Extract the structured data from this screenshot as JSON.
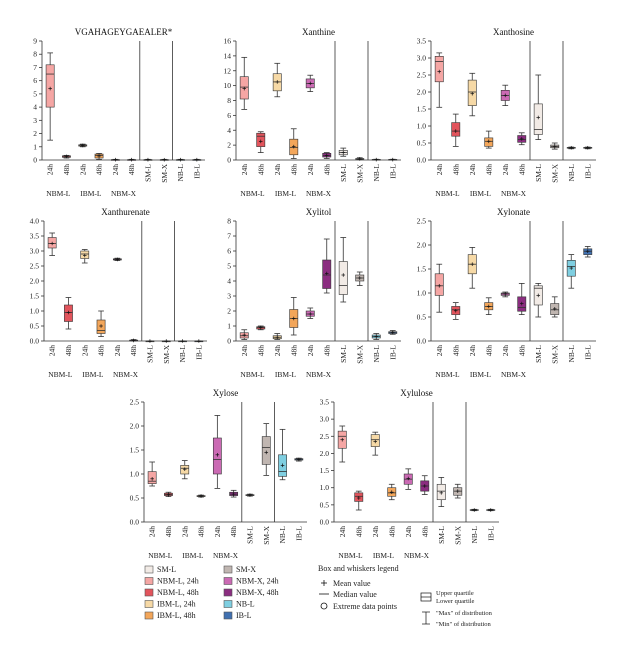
{
  "colors": {
    "SM-L": "#f2ebe6",
    "NBM-L, 24h": "#f5a6a4",
    "NBM-L, 48h": "#e2545c",
    "IBM-L, 24h": "#f6d9a6",
    "IBM-L, 48h": "#f3a65a",
    "SM-X": "#c0b6b1",
    "NBM-X, 24h": "#cb6ab4",
    "NBM-X, 48h": "#8b2d80",
    "NB-L": "#7fcfe1",
    "IB-L": "#4070b0"
  },
  "legend": {
    "items": [
      "SM-L",
      "NBM-L, 24h",
      "NBM-L, 48h",
      "IBM-L, 24h",
      "IBM-L, 48h",
      "SM-X",
      "NBM-X, 24h",
      "NBM-X, 48h",
      "NB-L",
      "IB-L"
    ],
    "title": "Box and whiskers legend",
    "mean": "Mean value",
    "median": "Median value",
    "extreme": "Extreme data points",
    "upper_q": "Upper quartile",
    "lower_q": "Lower quartile",
    "max": "\"Max\" of distribution",
    "min": "\"Min\" of distribution"
  },
  "chart_data": [
    {
      "type": "box",
      "title": "VGAHAGEYGAEALER*",
      "ylim": [
        0,
        9
      ],
      "yticks": [
        0,
        1,
        2,
        3,
        4,
        5,
        6,
        7,
        8,
        9
      ],
      "decimals": 0,
      "boxes": [
        {
          "group": "NBM-L, 24h",
          "min": 1.5,
          "q1": 4.0,
          "median": 6.5,
          "q3": 7.2,
          "max": 8.1,
          "mean": 5.4
        },
        {
          "group": "NBM-L, 48h",
          "min": 0.15,
          "q1": 0.2,
          "median": 0.28,
          "q3": 0.32,
          "max": 0.35,
          "mean": 0.27
        },
        {
          "group": "IBM-L, 24h",
          "min": 1.0,
          "q1": 1.05,
          "median": 1.1,
          "q3": 1.15,
          "max": 1.2,
          "mean": 1.1
        },
        {
          "group": "IBM-L, 48h",
          "min": 0.05,
          "q1": 0.15,
          "median": 0.35,
          "q3": 0.45,
          "max": 0.5,
          "mean": 0.3
        },
        {
          "group": "NBM-X, 24h",
          "min": 0,
          "q1": 0.01,
          "median": 0.02,
          "q3": 0.03,
          "max": 0.05,
          "mean": 0.02
        },
        {
          "group": "NBM-X, 48h",
          "min": 0,
          "q1": 0.01,
          "median": 0.02,
          "q3": 0.03,
          "max": 0.05,
          "mean": 0.02
        },
        {
          "group": "SM-L",
          "min": 0,
          "q1": 0.01,
          "median": 0.02,
          "q3": 0.03,
          "max": 0.05,
          "mean": 0.02
        },
        {
          "group": "SM-X",
          "min": 0,
          "q1": 0.01,
          "median": 0.02,
          "q3": 0.03,
          "max": 0.05,
          "mean": 0.02
        },
        {
          "group": "NB-L",
          "min": 0,
          "q1": 0.01,
          "median": 0.02,
          "q3": 0.03,
          "max": 0.05,
          "mean": 0.02
        },
        {
          "group": "IB-L",
          "min": 0,
          "q1": 0.01,
          "median": 0.02,
          "q3": 0.03,
          "max": 0.05,
          "mean": 0.02
        }
      ]
    },
    {
      "type": "box",
      "title": "Xanthine",
      "ylim": [
        0,
        16
      ],
      "yticks": [
        0,
        2,
        4,
        6,
        8,
        10,
        12,
        14,
        16
      ],
      "decimals": 0,
      "boxes": [
        {
          "group": "NBM-L, 24h",
          "min": 6.8,
          "q1": 8.2,
          "median": 9.8,
          "q3": 11.2,
          "max": 13.8,
          "mean": 9.6
        },
        {
          "group": "NBM-L, 48h",
          "min": 1.0,
          "q1": 1.8,
          "median": 3.2,
          "q3": 3.6,
          "max": 3.8,
          "mean": 2.5
        },
        {
          "group": "IBM-L, 24h",
          "min": 8.5,
          "q1": 9.3,
          "median": 10.5,
          "q3": 11.6,
          "max": 13.0,
          "mean": 10.5
        },
        {
          "group": "IBM-L, 48h",
          "min": 0.2,
          "q1": 0.7,
          "median": 1.7,
          "q3": 2.8,
          "max": 4.2,
          "mean": 1.8
        },
        {
          "group": "NBM-X, 24h",
          "min": 9.2,
          "q1": 9.7,
          "median": 10.3,
          "q3": 10.9,
          "max": 11.4,
          "mean": 10.3
        },
        {
          "group": "NBM-X, 48h",
          "min": 0.2,
          "q1": 0.4,
          "median": 0.6,
          "q3": 0.9,
          "max": 1.0,
          "mean": 0.6
        },
        {
          "group": "SM-L",
          "min": 0.5,
          "q1": 0.7,
          "median": 1.0,
          "q3": 1.3,
          "max": 1.6,
          "mean": 1.0
        },
        {
          "group": "SM-X",
          "min": 0.05,
          "q1": 0.1,
          "median": 0.15,
          "q3": 0.2,
          "max": 0.3,
          "mean": 0.15
        },
        {
          "group": "NB-L",
          "min": 0,
          "q1": 0.02,
          "median": 0.05,
          "q3": 0.08,
          "max": 0.1,
          "mean": 0.05
        },
        {
          "group": "IB-L",
          "min": 0,
          "q1": 0.02,
          "median": 0.05,
          "q3": 0.08,
          "max": 0.1,
          "mean": 0.05
        }
      ]
    },
    {
      "type": "box",
      "title": "Xanthosine",
      "ylim": [
        0,
        3.5
      ],
      "yticks": [
        0,
        0.5,
        1,
        1.5,
        2,
        2.5,
        3,
        3.5
      ],
      "decimals": 1,
      "boxes": [
        {
          "group": "NBM-L, 24h",
          "min": 1.55,
          "q1": 2.3,
          "median": 2.9,
          "q3": 3.05,
          "max": 3.15,
          "mean": 2.6
        },
        {
          "group": "NBM-L, 48h",
          "min": 0.4,
          "q1": 0.7,
          "median": 0.85,
          "q3": 1.1,
          "max": 1.35,
          "mean": 0.85
        },
        {
          "group": "IBM-L, 24h",
          "min": 1.3,
          "q1": 1.6,
          "median": 2.0,
          "q3": 2.35,
          "max": 2.55,
          "mean": 1.95
        },
        {
          "group": "IBM-L, 48h",
          "min": 0.35,
          "q1": 0.4,
          "median": 0.55,
          "q3": 0.65,
          "max": 0.85,
          "mean": 0.55
        },
        {
          "group": "NBM-X, 24h",
          "min": 1.6,
          "q1": 1.75,
          "median": 1.9,
          "q3": 2.05,
          "max": 2.2,
          "mean": 1.9
        },
        {
          "group": "NBM-X, 48h",
          "min": 0.45,
          "q1": 0.52,
          "median": 0.6,
          "q3": 0.72,
          "max": 0.8,
          "mean": 0.62
        },
        {
          "group": "SM-L",
          "min": 0.6,
          "q1": 0.75,
          "median": 0.9,
          "q3": 1.65,
          "max": 2.5,
          "mean": 1.25
        },
        {
          "group": "SM-X",
          "min": 0.32,
          "q1": 0.36,
          "median": 0.4,
          "q3": 0.44,
          "max": 0.5,
          "mean": 0.4
        },
        {
          "group": "NB-L",
          "min": 0.33,
          "q1": 0.35,
          "median": 0.36,
          "q3": 0.37,
          "max": 0.38,
          "mean": 0.36
        },
        {
          "group": "IB-L",
          "min": 0.33,
          "q1": 0.35,
          "median": 0.36,
          "q3": 0.37,
          "max": 0.38,
          "mean": 0.36
        }
      ]
    },
    {
      "type": "box",
      "title": "Xanthurenate",
      "ylim": [
        0,
        4
      ],
      "yticks": [
        0,
        0.5,
        1,
        1.5,
        2,
        2.5,
        3,
        3.5,
        4
      ],
      "decimals": 1,
      "boxes": [
        {
          "group": "NBM-L, 24h",
          "min": 2.85,
          "q1": 3.1,
          "median": 3.25,
          "q3": 3.45,
          "max": 3.6,
          "mean": 3.25
        },
        {
          "group": "NBM-L, 48h",
          "min": 0.4,
          "q1": 0.65,
          "median": 0.95,
          "q3": 1.2,
          "max": 1.45,
          "mean": 0.95
        },
        {
          "group": "IBM-L, 24h",
          "min": 2.6,
          "q1": 2.75,
          "median": 2.9,
          "q3": 3.0,
          "max": 3.05,
          "mean": 2.85
        },
        {
          "group": "IBM-L, 48h",
          "min": 0.15,
          "q1": 0.25,
          "median": 0.35,
          "q3": 0.7,
          "max": 1.0,
          "mean": 0.5
        },
        {
          "group": "NBM-X, 24h",
          "min": 2.68,
          "q1": 2.7,
          "median": 2.72,
          "q3": 2.74,
          "max": 2.76,
          "mean": 2.72
        },
        {
          "group": "NBM-X, 48h",
          "min": 0,
          "q1": 0.01,
          "median": 0.02,
          "q3": 0.03,
          "max": 0.05,
          "mean": 0.02
        },
        {
          "group": "SM-L",
          "min": 0,
          "q1": 0,
          "median": 0,
          "q3": 0,
          "max": 0,
          "mean": 0
        },
        {
          "group": "SM-X",
          "min": 0,
          "q1": 0,
          "median": 0,
          "q3": 0,
          "max": 0,
          "mean": 0
        },
        {
          "group": "NB-L",
          "min": 0,
          "q1": 0,
          "median": 0,
          "q3": 0,
          "max": 0,
          "mean": 0
        },
        {
          "group": "IB-L",
          "min": 0,
          "q1": 0,
          "median": 0,
          "q3": 0,
          "max": 0,
          "mean": 0
        }
      ]
    },
    {
      "type": "box",
      "title": "Xylitol",
      "ylim": [
        0,
        8
      ],
      "yticks": [
        0,
        1,
        2,
        3,
        4,
        5,
        6,
        7,
        8
      ],
      "decimals": 0,
      "boxes": [
        {
          "group": "NBM-L, 24h",
          "min": 0.1,
          "q1": 0.2,
          "median": 0.35,
          "q3": 0.55,
          "max": 0.75,
          "mean": 0.4
        },
        {
          "group": "NBM-L, 48h",
          "min": 0.75,
          "q1": 0.8,
          "median": 0.9,
          "q3": 0.95,
          "max": 1.0,
          "mean": 0.9
        },
        {
          "group": "IBM-L, 24h",
          "min": 0.1,
          "q1": 0.15,
          "median": 0.25,
          "q3": 0.35,
          "max": 0.5,
          "mean": 0.25
        },
        {
          "group": "IBM-L, 48h",
          "min": 0.4,
          "q1": 0.9,
          "median": 1.5,
          "q3": 2.1,
          "max": 2.9,
          "mean": 1.5
        },
        {
          "group": "NBM-X, 24h",
          "min": 1.5,
          "q1": 1.65,
          "median": 1.8,
          "q3": 2.0,
          "max": 2.2,
          "mean": 1.8
        },
        {
          "group": "NBM-X, 48h",
          "min": 3.2,
          "q1": 3.5,
          "median": 4.4,
          "q3": 5.4,
          "max": 6.8,
          "mean": 4.5
        },
        {
          "group": "SM-L",
          "min": 2.6,
          "q1": 3.1,
          "median": 3.7,
          "q3": 5.3,
          "max": 6.9,
          "mean": 4.4
        },
        {
          "group": "SM-X",
          "min": 3.7,
          "q1": 4.0,
          "median": 4.2,
          "q3": 4.4,
          "max": 4.6,
          "mean": 4.2
        },
        {
          "group": "NB-L",
          "min": 0.1,
          "q1": 0.2,
          "median": 0.3,
          "q3": 0.4,
          "max": 0.5,
          "mean": 0.3
        },
        {
          "group": "IB-L",
          "min": 0.45,
          "q1": 0.5,
          "median": 0.55,
          "q3": 0.62,
          "max": 0.7,
          "mean": 0.56
        }
      ]
    },
    {
      "type": "box",
      "title": "Xylonate",
      "ylim": [
        0,
        2.5
      ],
      "yticks": [
        0,
        0.5,
        1,
        1.5,
        2,
        2.5
      ],
      "decimals": 1,
      "boxes": [
        {
          "group": "NBM-L, 24h",
          "min": 0.6,
          "q1": 0.95,
          "median": 1.15,
          "q3": 1.4,
          "max": 1.6,
          "mean": 1.15
        },
        {
          "group": "NBM-L, 48h",
          "min": 0.45,
          "q1": 0.55,
          "median": 0.65,
          "q3": 0.72,
          "max": 0.8,
          "mean": 0.63
        },
        {
          "group": "IBM-L, 24h",
          "min": 1.1,
          "q1": 1.4,
          "median": 1.6,
          "q3": 1.8,
          "max": 1.95,
          "mean": 1.6
        },
        {
          "group": "IBM-L, 48h",
          "min": 0.55,
          "q1": 0.65,
          "median": 0.72,
          "q3": 0.8,
          "max": 0.9,
          "mean": 0.72
        },
        {
          "group": "NBM-X, 24h",
          "min": 0.92,
          "q1": 0.95,
          "median": 0.98,
          "q3": 1.0,
          "max": 1.02,
          "mean": 0.98
        },
        {
          "group": "NBM-X, 48h",
          "min": 0.55,
          "q1": 0.62,
          "median": 0.7,
          "q3": 0.92,
          "max": 1.2,
          "mean": 0.78
        },
        {
          "group": "SM-L",
          "min": 0.5,
          "q1": 0.75,
          "median": 1.1,
          "q3": 1.15,
          "max": 1.2,
          "mean": 0.95
        },
        {
          "group": "SM-X",
          "min": 0.5,
          "q1": 0.55,
          "median": 0.65,
          "q3": 0.78,
          "max": 0.92,
          "mean": 0.67
        },
        {
          "group": "NB-L",
          "min": 1.1,
          "q1": 1.35,
          "median": 1.55,
          "q3": 1.68,
          "max": 1.8,
          "mean": 1.52
        },
        {
          "group": "IB-L",
          "min": 1.75,
          "q1": 1.8,
          "median": 1.87,
          "q3": 1.92,
          "max": 1.97,
          "mean": 1.87
        }
      ]
    },
    {
      "type": "box",
      "title": "Xylose",
      "ylim": [
        0,
        2.5
      ],
      "yticks": [
        0,
        0.5,
        1,
        1.5,
        2,
        2.5
      ],
      "decimals": 1,
      "boxes": [
        {
          "group": "NBM-L, 24h",
          "min": 0.75,
          "q1": 0.8,
          "median": 0.85,
          "q3": 1.05,
          "max": 1.25,
          "mean": 0.9
        },
        {
          "group": "NBM-L, 48h",
          "min": 0.53,
          "q1": 0.55,
          "median": 0.57,
          "q3": 0.6,
          "max": 0.62,
          "mean": 0.57
        },
        {
          "group": "IBM-L, 24h",
          "min": 0.9,
          "q1": 1.0,
          "median": 1.12,
          "q3": 1.18,
          "max": 1.28,
          "mean": 1.1
        },
        {
          "group": "IBM-L, 48h",
          "min": 0.52,
          "q1": 0.53,
          "median": 0.54,
          "q3": 0.55,
          "max": 0.56,
          "mean": 0.54
        },
        {
          "group": "NBM-X, 24h",
          "min": 0.7,
          "q1": 1.0,
          "median": 1.3,
          "q3": 1.75,
          "max": 2.22,
          "mean": 1.4
        },
        {
          "group": "NBM-X, 48h",
          "min": 0.52,
          "q1": 0.55,
          "median": 0.58,
          "q3": 0.62,
          "max": 0.66,
          "mean": 0.58
        },
        {
          "group": "SM-L",
          "min": 0.54,
          "q1": 0.55,
          "median": 0.56,
          "q3": 0.57,
          "max": 0.58,
          "mean": 0.56
        },
        {
          "group": "SM-X",
          "min": 0.97,
          "q1": 1.2,
          "median": 1.55,
          "q3": 1.78,
          "max": 2.05,
          "mean": 1.45
        },
        {
          "group": "NB-L",
          "min": 0.88,
          "q1": 0.95,
          "median": 1.05,
          "q3": 1.4,
          "max": 1.93,
          "mean": 1.18
        },
        {
          "group": "IB-L",
          "min": 1.27,
          "q1": 1.29,
          "median": 1.3,
          "q3": 1.32,
          "max": 1.33,
          "mean": 1.3
        }
      ]
    },
    {
      "type": "box",
      "title": "Xylulose",
      "ylim": [
        0,
        3.5
      ],
      "yticks": [
        0,
        0.5,
        1,
        1.5,
        2,
        2.5,
        3,
        3.5
      ],
      "decimals": 1,
      "boxes": [
        {
          "group": "NBM-L, 24h",
          "min": 1.75,
          "q1": 2.15,
          "median": 2.5,
          "q3": 2.65,
          "max": 2.8,
          "mean": 2.4
        },
        {
          "group": "NBM-L, 48h",
          "min": 0.35,
          "q1": 0.6,
          "median": 0.75,
          "q3": 0.85,
          "max": 0.9,
          "mean": 0.7
        },
        {
          "group": "IBM-L, 24h",
          "min": 1.95,
          "q1": 2.2,
          "median": 2.4,
          "q3": 2.55,
          "max": 2.62,
          "mean": 2.35
        },
        {
          "group": "IBM-L, 48h",
          "min": 0.65,
          "q1": 0.75,
          "median": 0.85,
          "q3": 1.0,
          "max": 1.1,
          "mean": 0.87
        },
        {
          "group": "NBM-X, 24h",
          "min": 0.95,
          "q1": 1.1,
          "median": 1.25,
          "q3": 1.4,
          "max": 1.55,
          "mean": 1.27
        },
        {
          "group": "NBM-X, 48h",
          "min": 0.8,
          "q1": 0.9,
          "median": 1.05,
          "q3": 1.2,
          "max": 1.35,
          "mean": 1.05
        },
        {
          "group": "SM-L",
          "min": 0.45,
          "q1": 0.65,
          "median": 0.9,
          "q3": 1.1,
          "max": 1.3,
          "mean": 0.85
        },
        {
          "group": "SM-X",
          "min": 0.7,
          "q1": 0.78,
          "median": 0.9,
          "q3": 1.0,
          "max": 1.1,
          "mean": 0.9
        },
        {
          "group": "NB-L",
          "min": 0.33,
          "q1": 0.34,
          "median": 0.35,
          "q3": 0.36,
          "max": 0.37,
          "mean": 0.35
        },
        {
          "group": "IB-L",
          "min": 0.33,
          "q1": 0.34,
          "median": 0.35,
          "q3": 0.36,
          "max": 0.37,
          "mean": 0.35
        }
      ]
    }
  ],
  "x_labels": {
    "times": [
      "24h",
      "48h",
      "24h",
      "48h",
      "24h",
      "48h"
    ],
    "singles": [
      "SM-L",
      "SM-X",
      "NB-L",
      "IB-L"
    ],
    "groups": [
      "NBM-L",
      "IBM-L",
      "NBM-X"
    ]
  }
}
